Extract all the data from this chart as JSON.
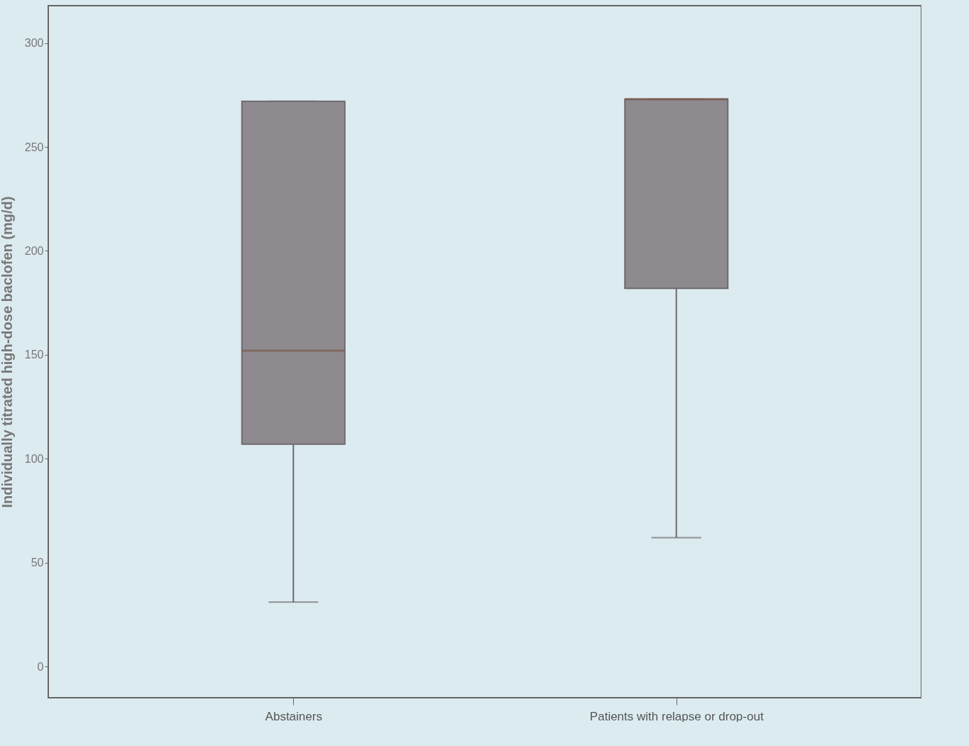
{
  "chart_data": {
    "type": "box",
    "ylabel": "Individually titrated high-dose baclofen (mg/d)",
    "categories": [
      "Abstainers",
      "Patients with relapse or drop-out"
    ],
    "boxes": [
      {
        "low": 31,
        "q1": 107,
        "median": 152,
        "q3": 272,
        "high": 272
      },
      {
        "low": 62,
        "q1": 182,
        "median": 273,
        "q3": 273,
        "high": 273
      }
    ],
    "color": "#8e8a90",
    "ylim": [
      -15,
      318
    ],
    "yticks": [
      0,
      50,
      100,
      150,
      200,
      250,
      300
    ],
    "grid": false
  }
}
